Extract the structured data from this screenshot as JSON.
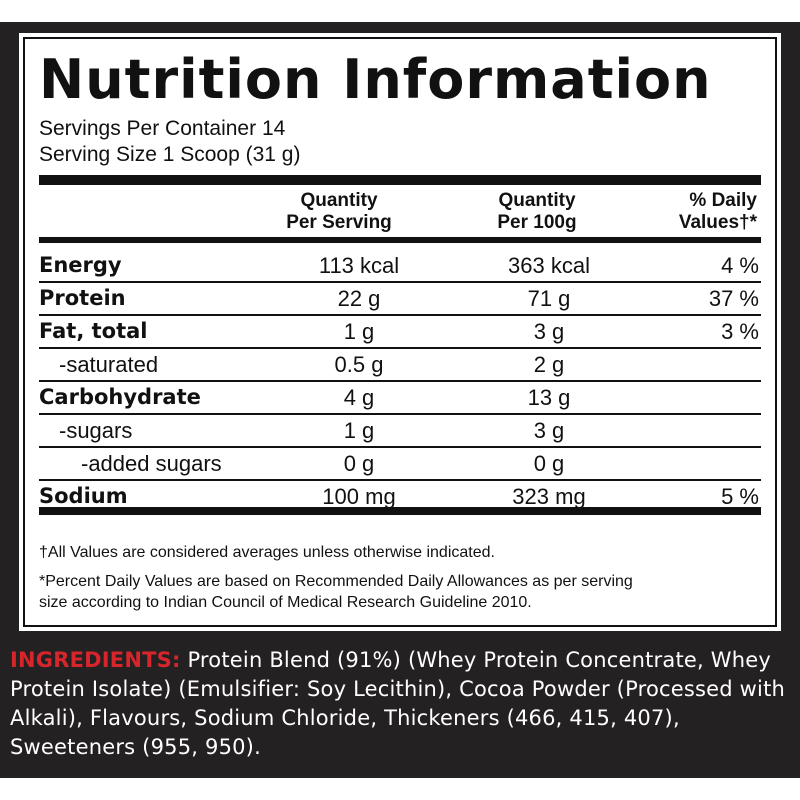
{
  "panel": {
    "title": "Nutrition Information",
    "servings_per_container": "Servings Per Container 14",
    "serving_size": "Serving Size 1 Scoop (31 g)",
    "headers": {
      "col1": [
        "Quantity",
        "Per Serving"
      ],
      "col2": [
        "Quantity",
        "Per 100g"
      ],
      "col3": [
        "% Daily",
        "Values†*"
      ]
    },
    "rows": [
      {
        "label": "Energy",
        "per_serving": "113 kcal",
        "per_100g": "363 kcal",
        "dv": "4 %",
        "style": "bold",
        "indent": 0
      },
      {
        "label": "Protein",
        "per_serving": "22 g",
        "per_100g": "71 g",
        "dv": "37 %",
        "style": "bold",
        "indent": 0
      },
      {
        "label": "Fat, total",
        "per_serving": "1 g",
        "per_100g": "3 g",
        "dv": "3 %",
        "style": "bold",
        "indent": 0
      },
      {
        "label": "-saturated",
        "per_serving": "0.5 g",
        "per_100g": "2 g",
        "dv": "",
        "style": "normal",
        "indent": 1
      },
      {
        "label": "Carbohydrate",
        "per_serving": "4 g",
        "per_100g": "13 g",
        "dv": "",
        "style": "bold",
        "indent": 0
      },
      {
        "label": "-sugars",
        "per_serving": "1 g",
        "per_100g": "3 g",
        "dv": "",
        "style": "normal",
        "indent": 1
      },
      {
        "label": "-added sugars",
        "per_serving": "0 g",
        "per_100g": "0 g",
        "dv": "",
        "style": "normal",
        "indent": 2
      },
      {
        "label": "Sodium",
        "per_serving": "100 mg",
        "per_100g": "323 mg",
        "dv": "5 %",
        "style": "bold",
        "indent": 0
      }
    ],
    "footnote1": "†All Values are considered averages unless otherwise indicated.",
    "footnote2_line1": "*Percent Daily Values are based on Recommended Daily Allowances as per serving",
    "footnote2_line2": "size according to Indian Council of Medical Research Guideline 2010."
  },
  "ingredients": {
    "label": "INGREDIENTS:",
    "text": " Protein Blend (91%) (Whey Protein Concentrate, Whey Protein Isolate) (Emulsifier: Soy Lecithin), Cocoa Powder (Processed with Alkali), Flavours, Sodium Chloride, Thickeners (466, 415, 407), Sweeteners (955, 950).",
    "label_color": "#d6252b"
  }
}
